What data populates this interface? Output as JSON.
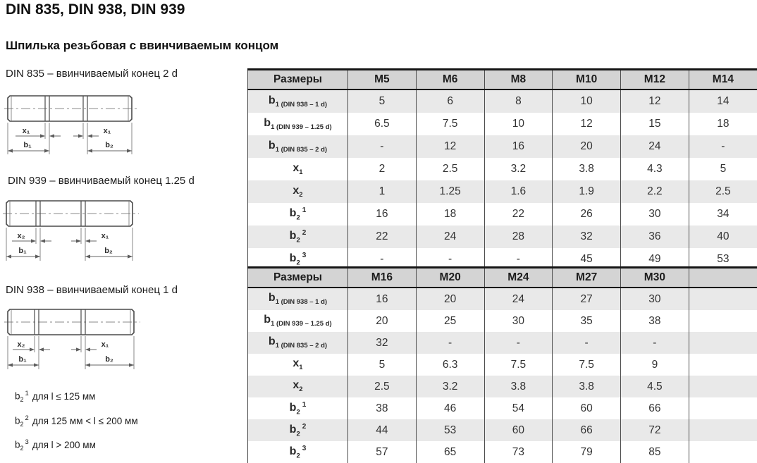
{
  "page": {
    "title": "DIN 835, DIN 938, DIN 939",
    "subtitle": "Шпилька резьбовая с ввинчиваемым концом"
  },
  "colors": {
    "header_bg": "#d4d4d4",
    "row_alt_bg": "#e9e9e9",
    "border_dark": "#151515",
    "grid_line": "#4d4d4d"
  },
  "drawings": [
    {
      "caption": "DIN 835 – ввинчиваемый конец 2 d",
      "dims": {
        "left_x": "x₁",
        "left_b": "b₁",
        "right_x": "x₁",
        "right_b": "b₂"
      }
    },
    {
      "caption": "DIN 939 – ввинчиваемый конец 1.25 d",
      "dims": {
        "left_x": "x₂",
        "left_b": "b₁",
        "right_x": "x₁",
        "right_b": "b₂"
      }
    },
    {
      "caption": "DIN 938 – ввинчиваемый конец 1 d",
      "dims": {
        "left_x": "x₂",
        "left_b": "b₁",
        "right_x": "x₁",
        "right_b": "b₂"
      }
    }
  ],
  "tables": [
    {
      "header": [
        "Размеры",
        "M5",
        "M6",
        "M8",
        "M10",
        "M12",
        "M14"
      ],
      "rows": [
        {
          "label": {
            "base": "b",
            "sub": "1 (DIN 938 – 1 d)",
            "sup": ""
          },
          "values": [
            "5",
            "6",
            "8",
            "10",
            "12",
            "14"
          ]
        },
        {
          "label": {
            "base": "b",
            "sub": "1 (DIN 939 – 1.25 d)",
            "sup": ""
          },
          "values": [
            "6.5",
            "7.5",
            "10",
            "12",
            "15",
            "18"
          ]
        },
        {
          "label": {
            "base": "b",
            "sub": "1 (DIN 835 – 2 d)",
            "sup": ""
          },
          "values": [
            "-",
            "12",
            "16",
            "20",
            "24",
            "-"
          ]
        },
        {
          "label": {
            "base": "x",
            "sub": "1",
            "sup": ""
          },
          "values": [
            "2",
            "2.5",
            "3.2",
            "3.8",
            "4.3",
            "5"
          ]
        },
        {
          "label": {
            "base": "x",
            "sub": "2",
            "sup": ""
          },
          "values": [
            "1",
            "1.25",
            "1.6",
            "1.9",
            "2.2",
            "2.5"
          ]
        },
        {
          "label": {
            "base": "b",
            "sub": "2",
            "sup": "1"
          },
          "values": [
            "16",
            "18",
            "22",
            "26",
            "30",
            "34"
          ]
        },
        {
          "label": {
            "base": "b",
            "sub": "2",
            "sup": "2"
          },
          "values": [
            "22",
            "24",
            "28",
            "32",
            "36",
            "40"
          ]
        },
        {
          "label": {
            "base": "b",
            "sub": "2",
            "sup": "3"
          },
          "values": [
            "-",
            "-",
            "-",
            "45",
            "49",
            "53"
          ]
        }
      ]
    },
    {
      "header": [
        "Размеры",
        "M16",
        "M20",
        "M24",
        "M27",
        "M30",
        ""
      ],
      "rows": [
        {
          "label": {
            "base": "b",
            "sub": "1 (DIN 938 – 1 d)",
            "sup": ""
          },
          "values": [
            "16",
            "20",
            "24",
            "27",
            "30",
            ""
          ]
        },
        {
          "label": {
            "base": "b",
            "sub": "1 (DIN 939 – 1.25 d)",
            "sup": ""
          },
          "values": [
            "20",
            "25",
            "30",
            "35",
            "38",
            ""
          ]
        },
        {
          "label": {
            "base": "b",
            "sub": "1 (DIN 835 – 2 d)",
            "sup": ""
          },
          "values": [
            "32",
            "-",
            "-",
            "-",
            "-",
            ""
          ]
        },
        {
          "label": {
            "base": "x",
            "sub": "1",
            "sup": ""
          },
          "values": [
            "5",
            "6.3",
            "7.5",
            "7.5",
            "9",
            ""
          ]
        },
        {
          "label": {
            "base": "x",
            "sub": "2",
            "sup": ""
          },
          "values": [
            "2.5",
            "3.2",
            "3.8",
            "3.8",
            "4.5",
            ""
          ]
        },
        {
          "label": {
            "base": "b",
            "sub": "2",
            "sup": "1"
          },
          "values": [
            "38",
            "46",
            "54",
            "60",
            "66",
            ""
          ]
        },
        {
          "label": {
            "base": "b",
            "sub": "2",
            "sup": "2"
          },
          "values": [
            "44",
            "53",
            "60",
            "66",
            "72",
            ""
          ]
        },
        {
          "label": {
            "base": "b",
            "sub": "2",
            "sup": "3"
          },
          "values": [
            "57",
            "65",
            "73",
            "79",
            "85",
            ""
          ]
        }
      ]
    }
  ],
  "footnotes": [
    {
      "base": "b",
      "sub": "2",
      "sup": "1",
      "text": "для l ≤ 125 мм"
    },
    {
      "base": "b",
      "sub": "2",
      "sup": "2",
      "text": "для 125 мм < l ≤ 200 мм"
    },
    {
      "base": "b",
      "sub": "2",
      "sup": "3",
      "text": "для l > 200 мм"
    }
  ]
}
